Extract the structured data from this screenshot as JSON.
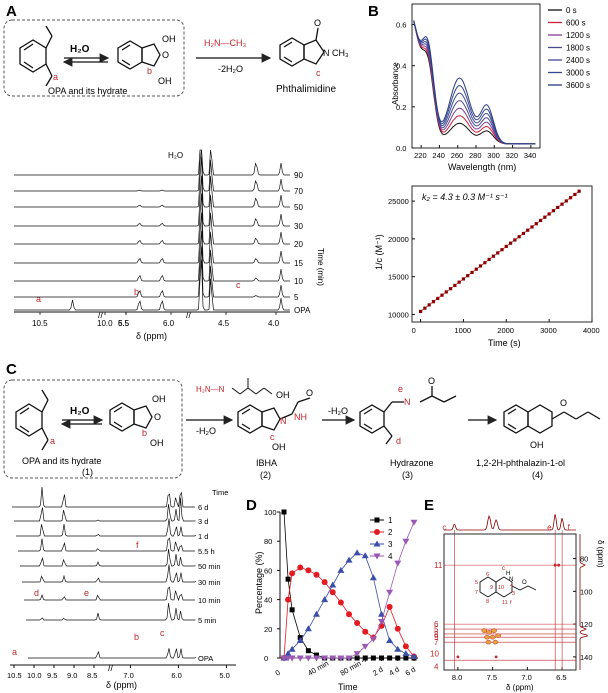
{
  "panels": {
    "A": "A",
    "B": "B",
    "C": "C",
    "D": "D",
    "E": "E"
  },
  "schemeA": {
    "reagent1": "H₂O",
    "reagent2": "H₂N—CH₃",
    "reagent2_sub": "-2H₂O",
    "box_label": "OPA and its hydrate",
    "product": "Phthalimidine",
    "atom_labels": [
      "a",
      "b",
      "c"
    ],
    "oh": "OH",
    "o": "O",
    "n": "N",
    "ch3": "CH₃"
  },
  "nmrA": {
    "h2o_label": "H₂O",
    "time_axis_label": "Time (min)",
    "trace_labels": [
      "90",
      "70",
      "50",
      "30",
      "20",
      "15",
      "10",
      "5",
      "OPA"
    ],
    "peak_labels": [
      "a",
      "b",
      "c"
    ],
    "ticks": [
      "10.5",
      "10.0",
      "6.5",
      "6.0",
      "5.5",
      "4.5",
      "4.0"
    ],
    "xlabel": "δ (ppm)",
    "axis_break": "//"
  },
  "uvB": {
    "chart_data": {
      "type": "line",
      "xlabel": "Wavelength (nm)",
      "ylabel": "Absorbance",
      "xlim": [
        210,
        350
      ],
      "ylim": [
        0,
        0.7
      ],
      "xticks": [
        "220",
        "240",
        "260",
        "280",
        "300",
        "320",
        "340"
      ],
      "yticks": [
        "0.0",
        "0.2",
        "0.4",
        "0.6"
      ],
      "legend_position": "top-right",
      "legend": [
        "0 s",
        "600 s",
        "1200 s",
        "1800 s",
        "2400 s",
        "3000 s",
        "3600 s"
      ],
      "series_colors": [
        "#111111",
        "#d0203a",
        "#7d3f9c",
        "#4a4a8c",
        "#3f4c96",
        "#36488f",
        "#2a3c80"
      ]
    }
  },
  "kinB": {
    "chart_data": {
      "type": "scatter",
      "annotation": "k₂ = 4.3 ± 0.3 M⁻¹ s⁻¹",
      "xlabel": "Time (s)",
      "ylabel": "1/c (M⁻¹)",
      "xlim": [
        -200,
        4000
      ],
      "ylim": [
        9000,
        27000
      ],
      "xticks": [
        "0",
        "1000",
        "2000",
        "3000",
        "4000"
      ],
      "yticks": [
        "10000",
        "15000",
        "20000",
        "25000"
      ],
      "line": {
        "slope": 4.3,
        "intercept": 10400
      },
      "t_start": 0,
      "t_end": 3700,
      "n_points": 38,
      "marker_color": "#8b0000"
    }
  },
  "schemeC": {
    "reagent1": "H₂O",
    "hydrazine_label": "H₂N—N",
    "minus_h2o_1": "-H₂O",
    "minus_h2o_2": "-H₂O",
    "box_label": "OPA and its hydrate",
    "n1": "(1)",
    "n2": "(2)",
    "n3": "(3)",
    "n4": "(4)",
    "ibha": "IBHA",
    "hydrazone": "Hydrazone",
    "product": "1,2-2H-phthalazin-1-ol",
    "atom_labels": [
      "a",
      "b",
      "c",
      "d",
      "e"
    ],
    "nh": "NH",
    "n": "N",
    "oh": "OH",
    "o": "O"
  },
  "nmrC": {
    "trace_labels": [
      "Time",
      "6 d",
      "3 d",
      "1 d",
      "5.5 h",
      "50 min",
      "30 min",
      "10 min",
      "5 min",
      "OPA"
    ],
    "peak_labels": [
      "a",
      "b",
      "c",
      "d",
      "e",
      "f"
    ],
    "ticks": [
      "10.5",
      "10.0",
      "9.5",
      "9.0",
      "8.5",
      "7.0",
      "6.0",
      "5.0"
    ],
    "xlabel": "δ (ppm)",
    "axis_break": "//"
  },
  "pctD": {
    "chart_data": {
      "type": "line",
      "xlabel": "Time",
      "ylabel": "Percentage (%)",
      "ylim": [
        0,
        100
      ],
      "yticks": [
        "0",
        "20",
        "40",
        "60",
        "80",
        "100"
      ],
      "xticks": [
        "0",
        "40 min",
        "80 min",
        "2 d",
        "4 d",
        "6 d"
      ],
      "x": [
        0,
        5,
        10,
        20,
        30,
        40,
        50,
        60,
        70,
        80,
        90,
        100,
        110,
        120,
        130,
        140,
        150,
        160
      ],
      "series": [
        {
          "name": "1",
          "color": "#000000",
          "marker": "square",
          "values": [
            100,
            54,
            33,
            14,
            5,
            2,
            0,
            0,
            0,
            0,
            0,
            0,
            0,
            0,
            0,
            0,
            0,
            0
          ]
        },
        {
          "name": "2",
          "color": "#e31b23",
          "marker": "circle",
          "values": [
            0,
            40,
            58,
            62,
            60,
            57,
            52,
            45,
            38,
            30,
            24,
            18,
            14,
            22,
            35,
            20,
            8,
            1
          ]
        },
        {
          "name": "3",
          "color": "#3b4ea8",
          "marker": "triangle-up",
          "values": [
            0,
            3,
            6,
            12,
            20,
            30,
            40,
            50,
            60,
            67,
            72,
            70,
            55,
            30,
            12,
            6,
            3,
            1
          ]
        },
        {
          "name": "4",
          "color": "#9b59b6",
          "marker": "triangle-down",
          "values": [
            0,
            0,
            0,
            0,
            0,
            0,
            0,
            0,
            0,
            0,
            3,
            8,
            13,
            25,
            45,
            65,
            80,
            93
          ]
        }
      ],
      "legend_position": "top-right"
    }
  },
  "hsqcE": {
    "xticks": [
      "8.0",
      "7.5",
      "7.0",
      "6.5"
    ],
    "yticks": [
      "80",
      "100",
      "120",
      "140"
    ],
    "xlabel": "δ (ppm)",
    "ylabel": "δ (ppm)",
    "cross_labels": [
      "c",
      "e",
      "f",
      "11",
      "6",
      "5",
      "8",
      "9",
      "7",
      "10",
      "4"
    ],
    "structure_labels": [
      "c",
      "3",
      "4",
      "5",
      "6",
      "7",
      "8",
      "9",
      "10",
      "H",
      "N",
      "O",
      "11",
      "f"
    ]
  }
}
